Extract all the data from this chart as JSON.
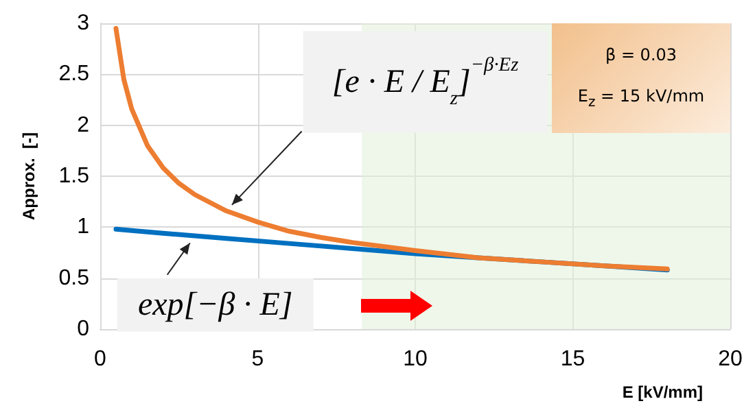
{
  "chart_data": {
    "type": "line",
    "xlabel": "E [kV/mm]",
    "ylabel": "Approx.  [-]",
    "xlim": [
      0,
      20
    ],
    "xticks": [
      0,
      5,
      10,
      15,
      20
    ],
    "ylim": [
      0,
      3
    ],
    "yticks": [
      0,
      0.5,
      1,
      1.5,
      2,
      2.5,
      3
    ],
    "grid": true,
    "marker": "none",
    "line_style": "solid",
    "series": [
      {
        "color": "#ed7d31",
        "x": [
          0.5,
          0.75,
          1,
          1.5,
          2,
          2.5,
          3,
          4,
          5,
          6,
          7,
          8,
          10,
          12,
          14,
          16,
          18
        ],
        "values": [
          2.95,
          2.45,
          2.16,
          1.8,
          1.58,
          1.43,
          1.32,
          1.16,
          1.05,
          0.96,
          0.9,
          0.85,
          0.77,
          0.7,
          0.66,
          0.62,
          0.59
        ]
      },
      {
        "color": "#0070c0",
        "x": [
          0.5,
          2,
          4,
          6,
          8,
          10,
          12,
          14,
          16,
          18
        ],
        "values": [
          0.98,
          0.94,
          0.89,
          0.84,
          0.79,
          0.74,
          0.7,
          0.66,
          0.62,
          0.58
        ]
      }
    ],
    "bands": [
      {
        "axis": "x",
        "from": 8.3,
        "to": 20,
        "color": "#e2f0d9"
      }
    ],
    "annotations": [
      {
        "text": "[e · E / E$_{z}$]$^{−β·Ez}$",
        "x": 4,
        "y": 1.16
      },
      {
        "text": "exp[−β · E]",
        "x": 3,
        "y": 0.91
      },
      "β = 0.03",
      "E$_{z}$ = 15 kV/mm"
    ]
  }
}
